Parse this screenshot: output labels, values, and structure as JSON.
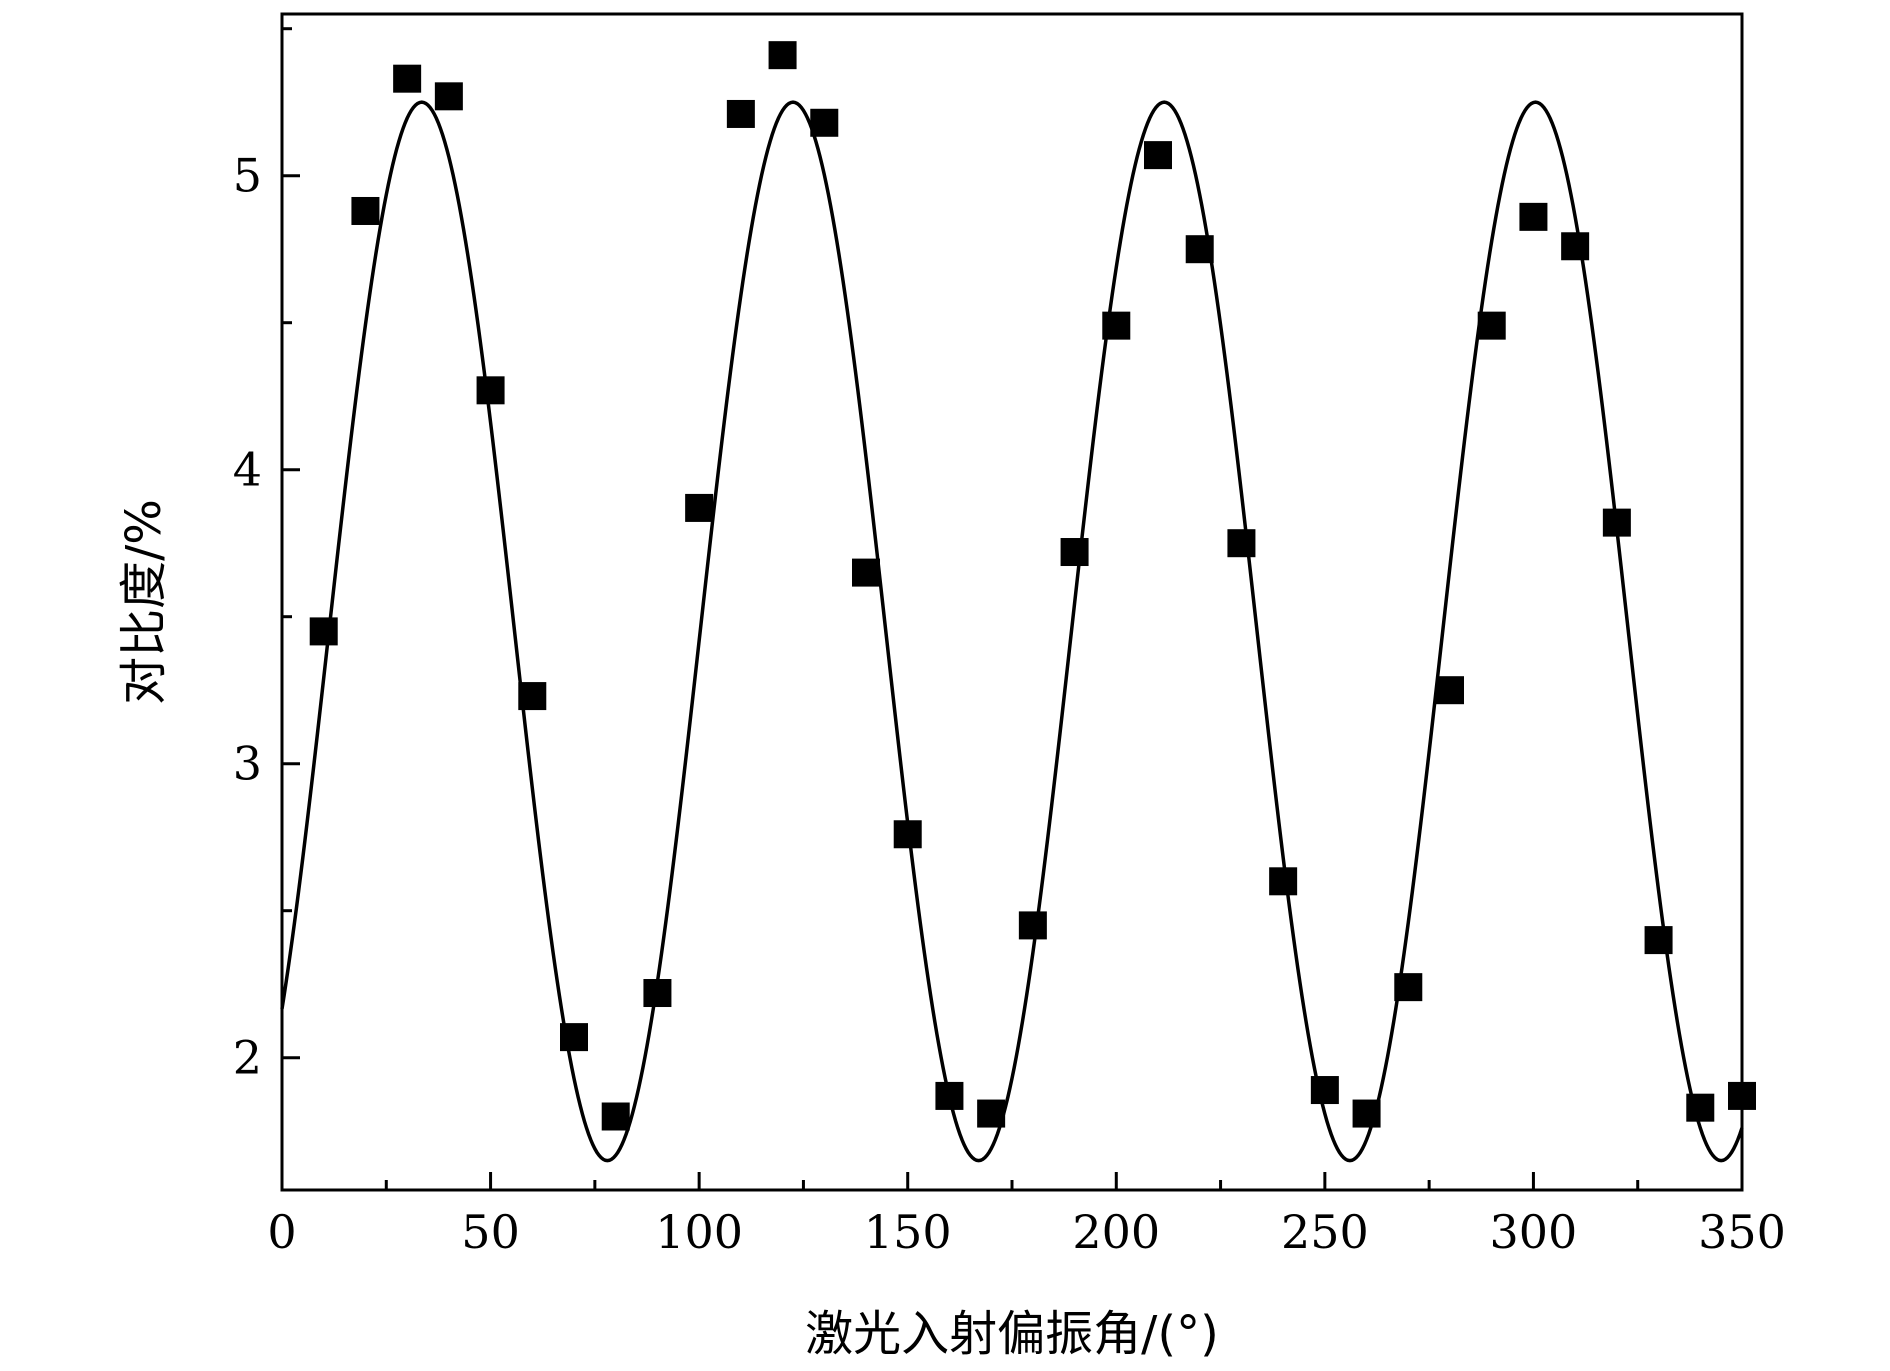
{
  "chart_data": {
    "type": "scatter",
    "title": "",
    "xlabel": "激光入射偏振角/(°)",
    "ylabel": "对比度/%",
    "xlim": [
      0,
      350
    ],
    "ylim": [
      1.55,
      5.55
    ],
    "xticks": [
      0,
      50,
      100,
      150,
      200,
      250,
      300,
      350
    ],
    "yticks": [
      2,
      3,
      4,
      5
    ],
    "grid": false,
    "legend": "none",
    "series": [
      {
        "kind": "points",
        "marker": "square",
        "color": "#000000",
        "x": [
          10,
          20,
          30,
          40,
          50,
          60,
          70,
          80,
          90,
          100,
          110,
          120,
          130,
          140,
          150,
          160,
          170,
          180,
          190,
          200,
          210,
          220,
          230,
          240,
          250,
          260,
          270,
          280,
          290,
          300,
          310,
          320,
          330,
          340,
          350
        ],
        "y": [
          3.45,
          4.88,
          5.33,
          5.27,
          4.27,
          3.23,
          2.07,
          1.8,
          2.22,
          3.87,
          5.21,
          5.41,
          5.18,
          3.65,
          2.76,
          1.87,
          1.81,
          2.45,
          3.72,
          4.49,
          5.07,
          4.75,
          3.75,
          2.6,
          1.89,
          1.81,
          2.24,
          3.25,
          4.49,
          4.86,
          4.76,
          3.82,
          2.4,
          1.83,
          1.87
        ]
      },
      {
        "kind": "fit",
        "color": "#000000",
        "function": "sine",
        "offset": 3.45,
        "amplitude": 1.8,
        "period": 89,
        "peak_x": 33.5,
        "x_range": [
          0,
          350
        ]
      }
    ]
  }
}
